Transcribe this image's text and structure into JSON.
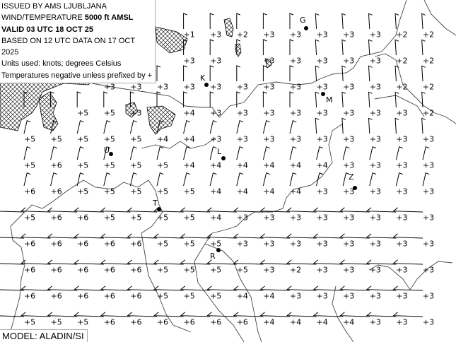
{
  "info": {
    "line1": "ISSUED BY AMS LJUBLJANA",
    "line2_prefix": "WIND/TEMPERATURE ",
    "line2_level": "5000 ft AMSL",
    "line3": "VALID 03 UTC 18 OCT 25",
    "line4": "BASED ON 12 UTC DATA ON 17 OCT 2025",
    "line5": "Units used: knots; degrees Celsius",
    "line6": "Temperatures negative unless prefixed by +"
  },
  "model": "MODEL: ALADIN/SI",
  "temperature_grid": [
    [
      null,
      null,
      null,
      null,
      null,
      null,
      "+1",
      "+3",
      "+2",
      "+3",
      "+3",
      "+3",
      "+3",
      "+3",
      "+2",
      "+2"
    ],
    [
      null,
      null,
      null,
      null,
      null,
      null,
      "+3",
      "+3",
      null,
      "+3",
      "+3",
      "+3",
      "+3",
      "+3",
      "+2",
      "+2"
    ],
    [
      null,
      null,
      null,
      "+3",
      "+3",
      "+3",
      "+3",
      "+3",
      "+3",
      "+3",
      "+3",
      "+3",
      "+3",
      "+3",
      "+2",
      "+2"
    ],
    [
      null,
      null,
      "+5",
      "+5",
      "+3",
      null,
      "+4",
      "+3",
      "+3",
      "+3",
      "+3",
      "+3",
      "+3",
      "+3",
      "+3",
      "+2"
    ],
    [
      "+5",
      "+5",
      "+5",
      "+5",
      "+5",
      "+4",
      "+4",
      "+3",
      "+3",
      "+3",
      "+3",
      "+3",
      "+3",
      "+3",
      "+3",
      "+3"
    ],
    [
      "+5",
      "+6",
      "+5",
      "+5",
      "+5",
      "+5",
      "+4",
      "+4",
      "+4",
      "+4",
      "+4",
      "+4",
      "+3",
      "+3",
      "+3",
      "+3"
    ],
    [
      "+6",
      "+6",
      "+5",
      "+5",
      "+5",
      "+5",
      "+5",
      "+4",
      "+4",
      "+4",
      "+4",
      "+3",
      "+3",
      "+3",
      "+3",
      "+3"
    ],
    [
      "+5",
      "+6",
      "+6",
      "+5",
      "+5",
      "+5",
      "+5",
      "+4",
      "+3",
      "+3",
      "+3",
      "+3",
      "+3",
      "+3",
      "+3",
      "+3"
    ],
    [
      "+6",
      "+6",
      "+6",
      "+6",
      "+6",
      "+5",
      "+5",
      "+5",
      "+3",
      "+3",
      "+3",
      "+3",
      "+3",
      "+3",
      "+3",
      "+3"
    ],
    [
      "+6",
      "+6",
      "+6",
      "+6",
      "+6",
      "+5",
      "+5",
      "+5",
      "+5",
      "+3",
      "+2",
      "+3",
      "+3",
      "+3",
      "+3",
      "+3"
    ],
    [
      "+6",
      "+6",
      "+6",
      "+6",
      "+6",
      "+5",
      "+5",
      "+5",
      "+4",
      "+4",
      "+3",
      "+3",
      "+3",
      "+3",
      "+3",
      "+3"
    ],
    [
      "+5",
      "+5",
      "+5",
      "+6",
      "+6",
      "+6",
      "+6",
      "+6",
      "+6",
      "+4",
      "+4",
      "+4",
      "+4",
      "+3",
      "+3",
      "+3"
    ]
  ],
  "stations": [
    {
      "label": "G"
    },
    {
      "label": "K"
    },
    {
      "label": "M"
    },
    {
      "label": "U"
    },
    {
      "label": "L"
    },
    {
      "label": "Z"
    },
    {
      "label": "T"
    },
    {
      "label": "R"
    }
  ],
  "colors": {
    "text": "#000000",
    "coast": "#444444",
    "hatch": "#000000",
    "background": "#ffffff"
  }
}
